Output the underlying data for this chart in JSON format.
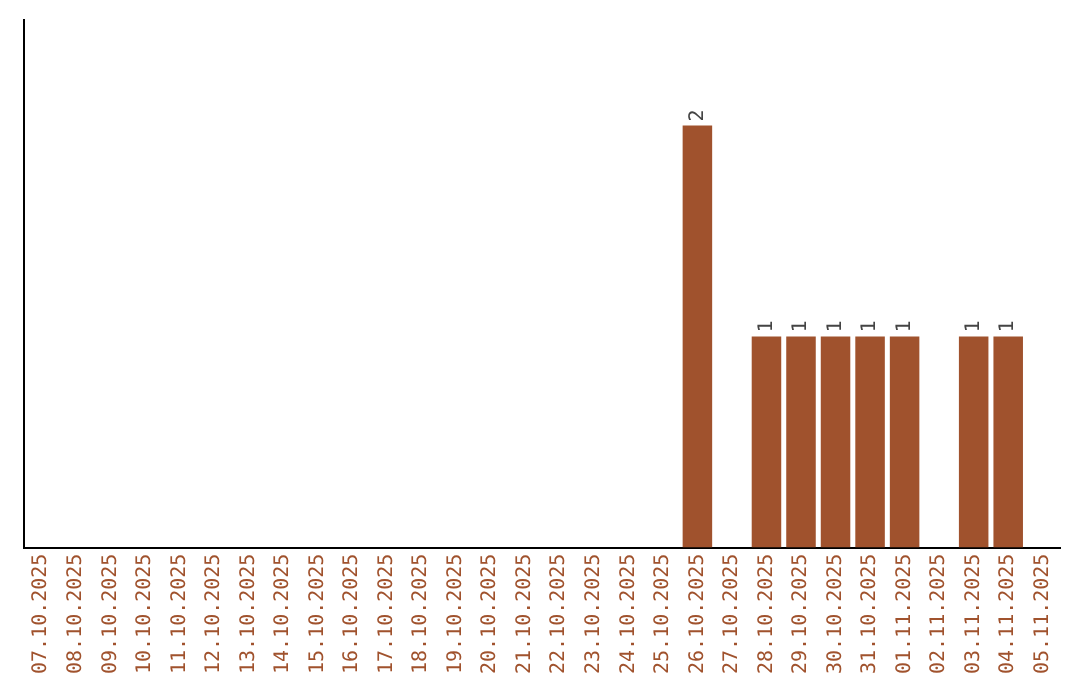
{
  "chart_data": {
    "type": "bar",
    "categories": [
      "07.10.2025",
      "08.10.2025",
      "09.10.2025",
      "10.10.2025",
      "11.10.2025",
      "12.10.2025",
      "13.10.2025",
      "14.10.2025",
      "15.10.2025",
      "16.10.2025",
      "17.10.2025",
      "18.10.2025",
      "19.10.2025",
      "20.10.2025",
      "21.10.2025",
      "22.10.2025",
      "23.10.2025",
      "24.10.2025",
      "25.10.2025",
      "26.10.2025",
      "27.10.2025",
      "28.10.2025",
      "29.10.2025",
      "30.10.2025",
      "31.10.2025",
      "01.11.2025",
      "02.11.2025",
      "03.11.2025",
      "04.11.2025",
      "05.11.2025"
    ],
    "values": [
      null,
      null,
      null,
      null,
      null,
      null,
      null,
      null,
      null,
      null,
      null,
      null,
      null,
      null,
      null,
      null,
      null,
      null,
      null,
      2,
      null,
      1,
      1,
      1,
      1,
      1,
      null,
      1,
      1,
      null
    ],
    "data_labels": true,
    "color": "#a0522d",
    "grid": false,
    "legend": false,
    "tick_labels": "x"
  }
}
